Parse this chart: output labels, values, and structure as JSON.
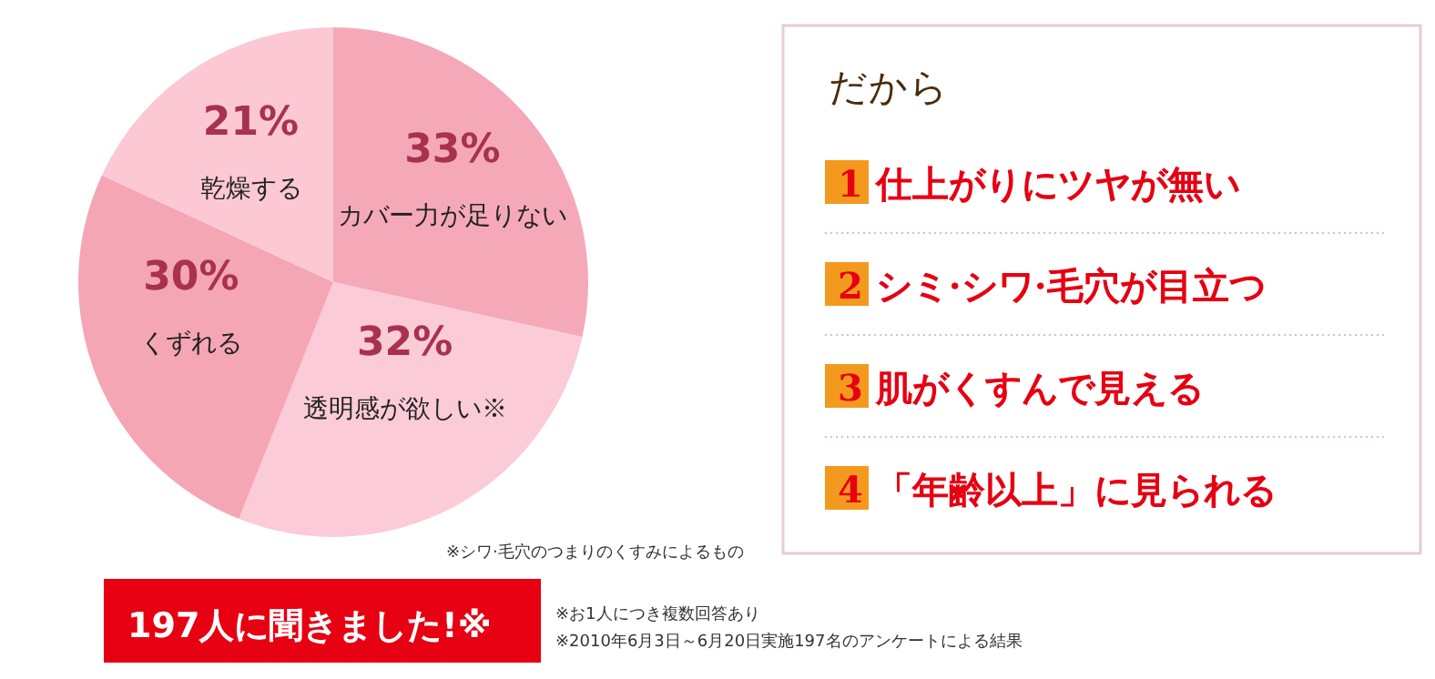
{
  "chart_data": [
    {
      "type": "pie",
      "categories": [
        "カバー力が足りない",
        "透明感が欲しい※",
        "くずれる",
        "乾燥する"
      ],
      "values": [
        33,
        32,
        30,
        21
      ],
      "colors": [
        "#f5a9b8",
        "#fbcbd7",
        "#f4a6b4",
        "#fbc8d4"
      ],
      "value_labels": [
        "33%",
        "32%",
        "30%",
        "21%"
      ],
      "annotations": [
        "※シワ·毛穴のつまりのくすみによるもの",
        "197人に聞きました!※",
        "※お1人につき複数回答あり",
        "※2010年6月3日～6月20日実施197名のアンケートによる結果"
      ]
    },
    {
      "type": "other",
      "title": "だから",
      "annotations": [
        "1 仕上がりにツヤが無い",
        "2 シミ·シワ·毛穴が目立つ",
        "3 肌がくすんで見える",
        "4 「年齢以上」に見られる"
      ]
    }
  ]
}
